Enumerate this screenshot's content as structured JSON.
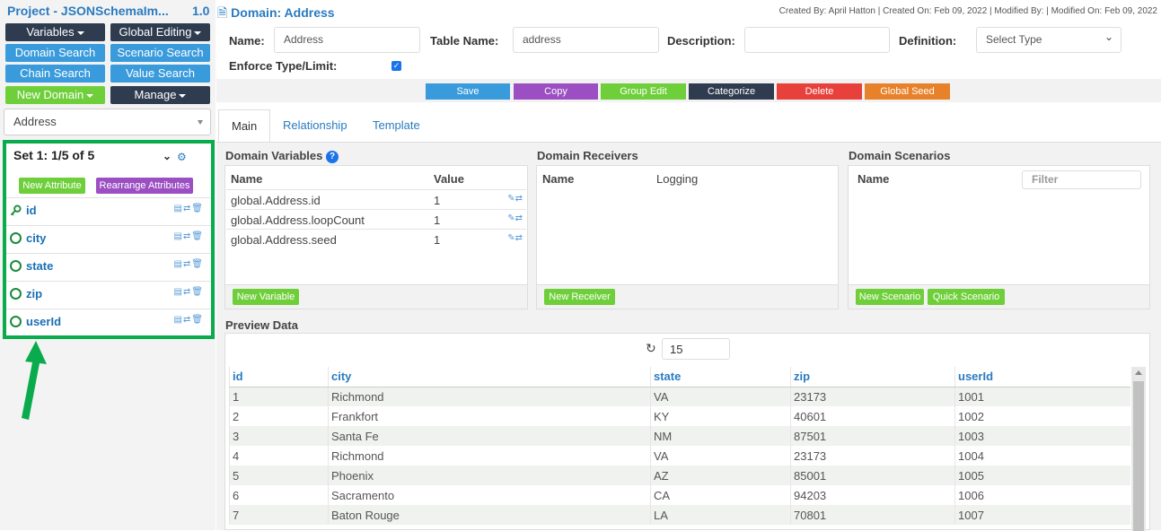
{
  "project": {
    "title": "Project - JSONSchemaIm...",
    "version": "1.0"
  },
  "left_buttons": {
    "variables": "Variables",
    "global_editing": "Global Editing",
    "domain_search": "Domain Search",
    "scenario_search": "Scenario Search",
    "chain_search": "Chain Search",
    "value_search": "Value Search",
    "new_domain": "New Domain",
    "manage": "Manage"
  },
  "domain_select": {
    "value": "Address"
  },
  "attributes_panel": {
    "set_label": "Set 1: 1/5 of 5",
    "new_attribute": "New Attribute",
    "rearrange": "Rearrange Attributes",
    "items": [
      {
        "name": "id",
        "icon": "key-icon"
      },
      {
        "name": "city",
        "icon": "lifebuoy-icon"
      },
      {
        "name": "state",
        "icon": "lifebuoy-icon"
      },
      {
        "name": "zip",
        "icon": "lifebuoy-icon"
      },
      {
        "name": "userId",
        "icon": "lifebuoy-icon"
      }
    ],
    "highlight_color": "#0aab4c"
  },
  "header": {
    "domain_title": "Domain: Address",
    "meta": "Created By: April Hatton | Created On: Feb 09, 2022 | Modified By: | Modified On: Feb 09, 2022"
  },
  "form": {
    "name_label": "Name:",
    "name_value": "Address",
    "table_name_label": "Table Name:",
    "table_name_value": "address",
    "description_label": "Description:",
    "description_value": "",
    "definition_label": "Definition:",
    "definition_value": "Select Type",
    "enforce_label": "Enforce Type/Limit:",
    "enforce_checked": true
  },
  "actions": {
    "save": "Save",
    "copy": "Copy",
    "group_edit": "Group Edit",
    "categorize": "Categorize",
    "delete": "Delete",
    "global_seed": "Global Seed"
  },
  "tabs": {
    "main": "Main",
    "relationship": "Relationship",
    "template": "Template"
  },
  "domain_variables": {
    "title": "Domain Variables",
    "col_name": "Name",
    "col_value": "Value",
    "rows": [
      {
        "name": "global.Address.id",
        "value": "1"
      },
      {
        "name": "global.Address.loopCount",
        "value": "1"
      },
      {
        "name": "global.Address.seed",
        "value": "1"
      }
    ],
    "new_button": "New Variable"
  },
  "domain_receivers": {
    "title": "Domain Receivers",
    "col_name": "Name",
    "col_logging": "Logging",
    "new_button": "New Receiver"
  },
  "domain_scenarios": {
    "title": "Domain Scenarios",
    "col_name": "Name",
    "filter_placeholder": "Filter",
    "new_button": "New Scenario",
    "quick_button": "Quick Scenario"
  },
  "preview": {
    "title": "Preview Data",
    "count": "15",
    "columns": [
      "id",
      "city",
      "state",
      "zip",
      "userId"
    ],
    "rows": [
      [
        "1",
        "Richmond",
        "VA",
        "23173",
        "1001"
      ],
      [
        "2",
        "Frankfort",
        "KY",
        "40601",
        "1002"
      ],
      [
        "3",
        "Santa Fe",
        "NM",
        "87501",
        "1003"
      ],
      [
        "4",
        "Richmond",
        "VA",
        "23173",
        "1004"
      ],
      [
        "5",
        "Phoenix",
        "AZ",
        "85001",
        "1005"
      ],
      [
        "6",
        "Sacramento",
        "CA",
        "94203",
        "1006"
      ],
      [
        "7",
        "Baton Rouge",
        "LA",
        "70801",
        "1007"
      ]
    ]
  }
}
